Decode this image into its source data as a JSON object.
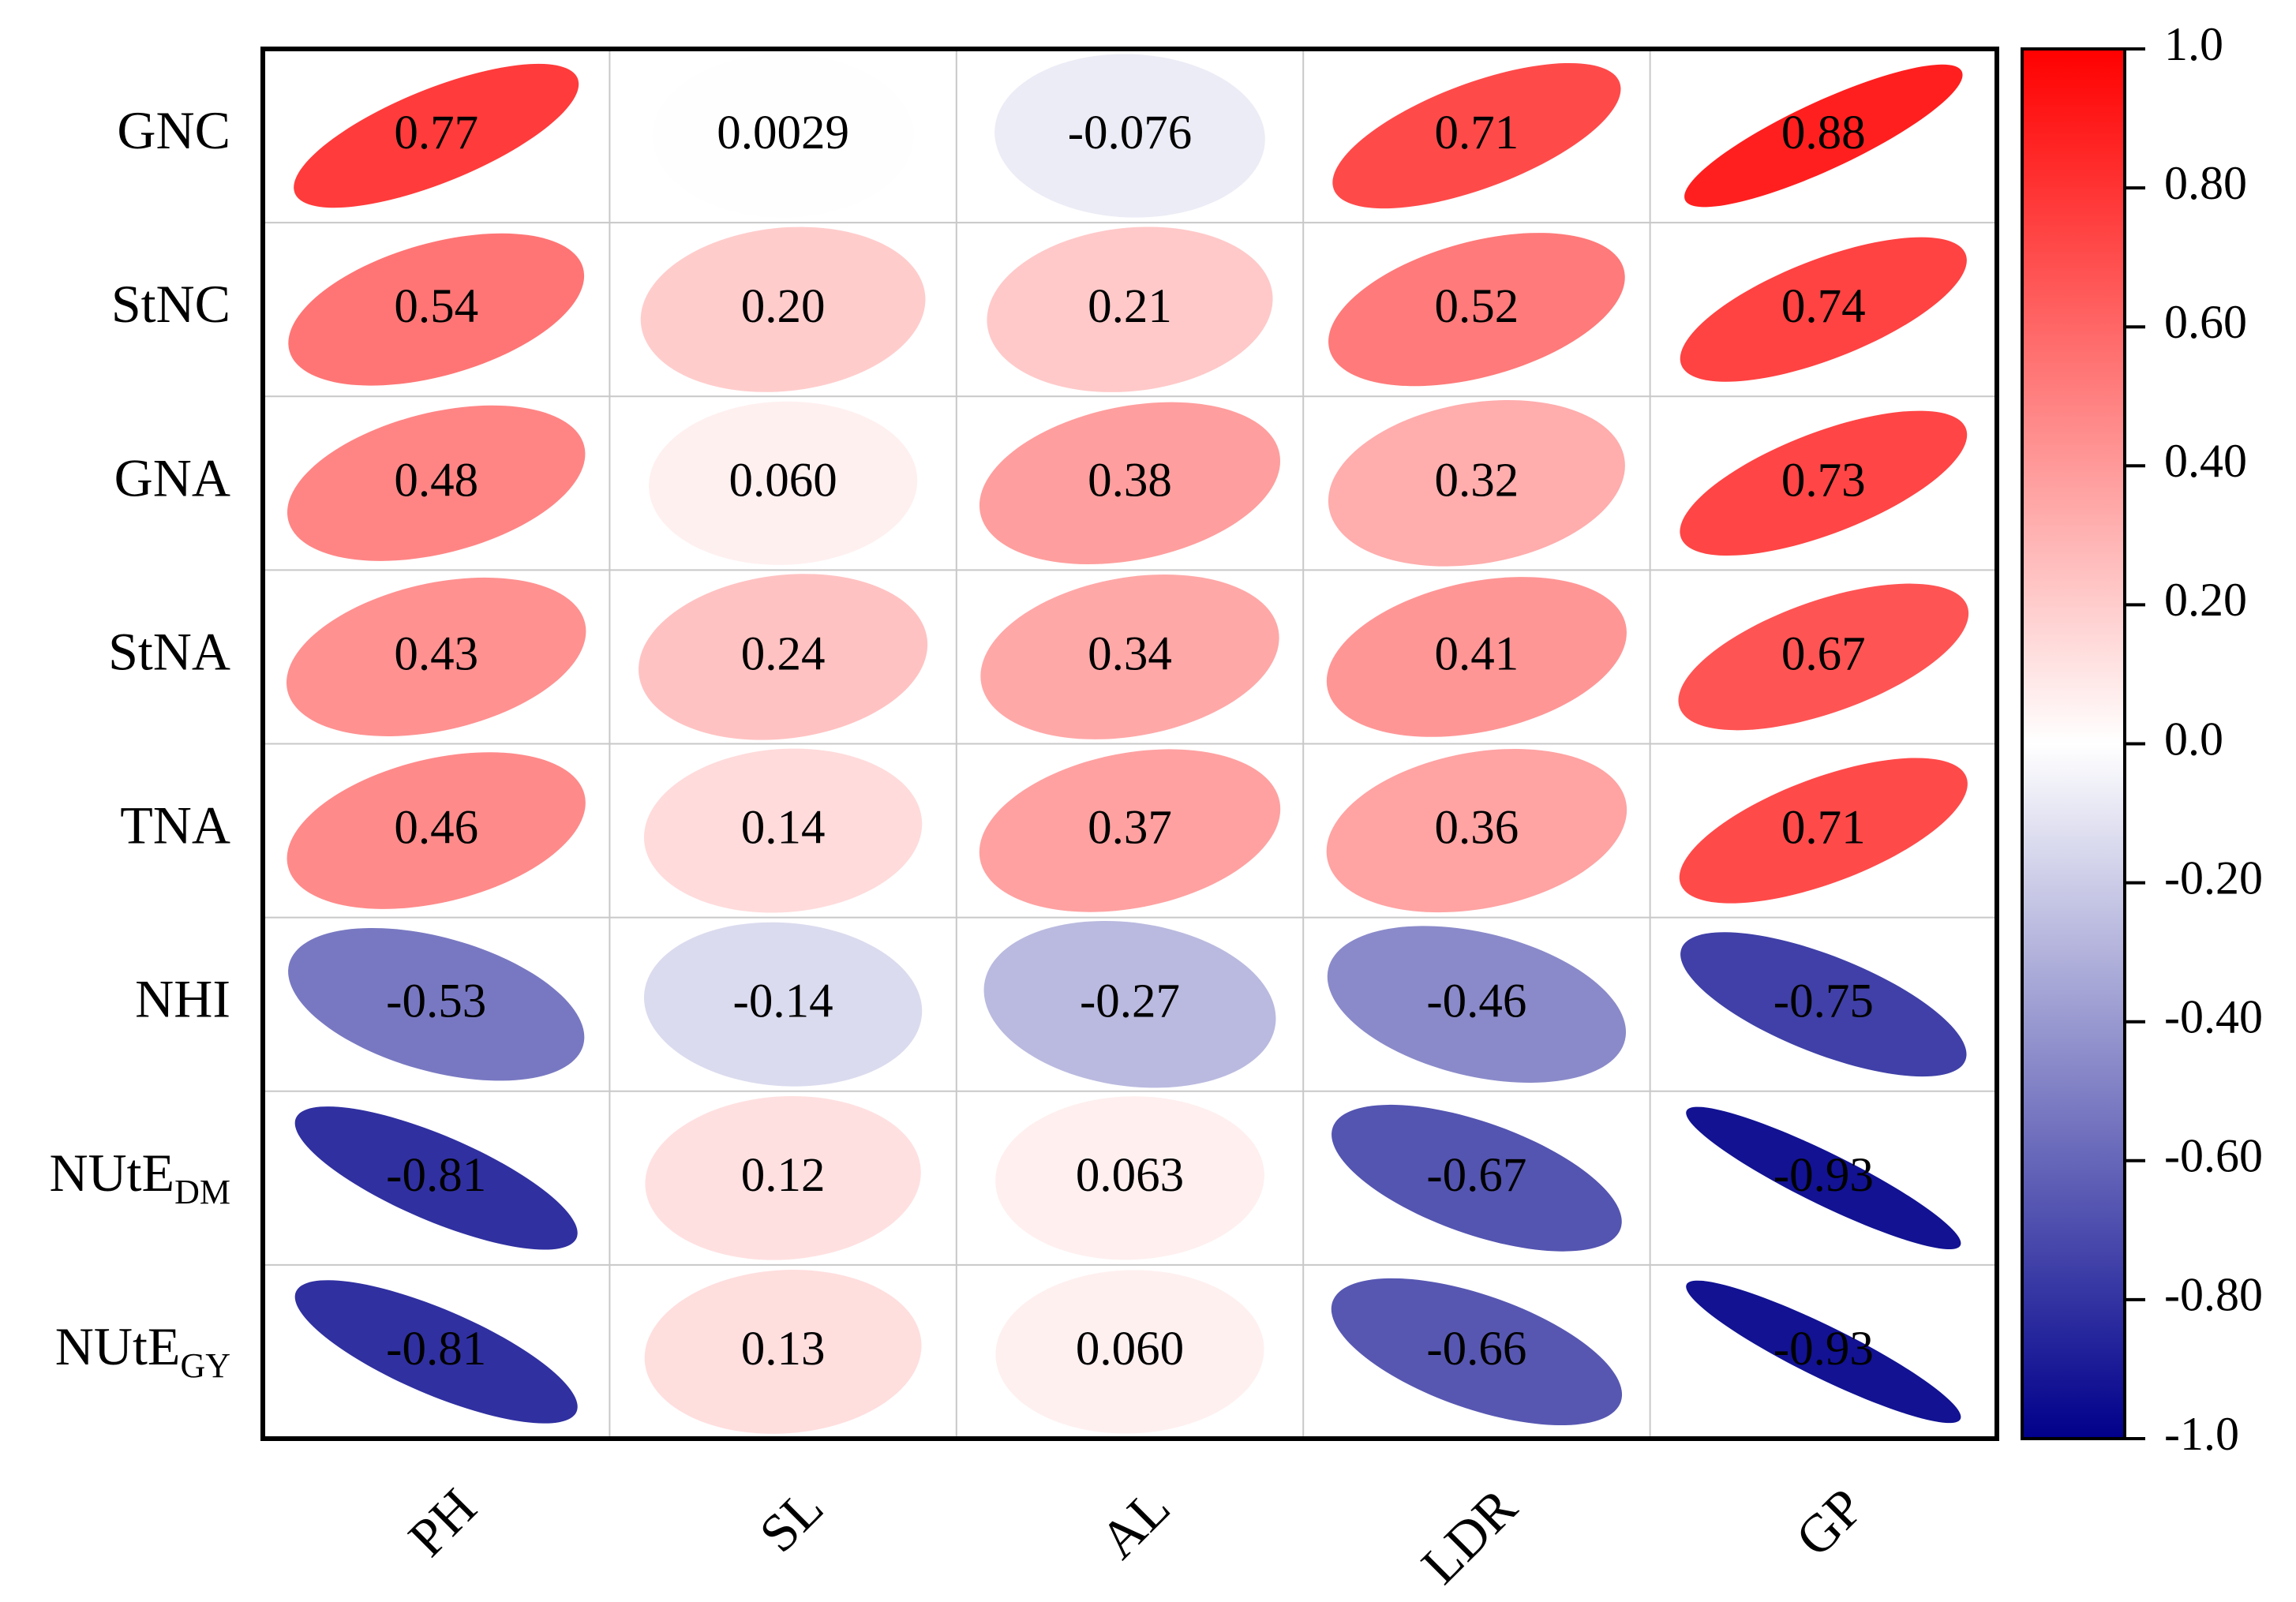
{
  "chart_data": {
    "type": "heatmap",
    "title": "",
    "xlabel": "",
    "ylabel": "",
    "rows": [
      {
        "label": "GNC"
      },
      {
        "label": "StNC"
      },
      {
        "label": "GNA"
      },
      {
        "label": "StNA"
      },
      {
        "label": "TNA"
      },
      {
        "label": "NHI"
      },
      {
        "label": "NUtE",
        "sub": "DM"
      },
      {
        "label": "NUtE",
        "sub": "GY"
      }
    ],
    "columns": [
      "PH",
      "SL",
      "AL",
      "LDR",
      "GP"
    ],
    "values": [
      [
        0.77,
        0.0029,
        -0.076,
        0.71,
        0.88
      ],
      [
        0.54,
        0.2,
        0.21,
        0.52,
        0.74
      ],
      [
        0.48,
        0.06,
        0.38,
        0.32,
        0.73
      ],
      [
        0.43,
        0.24,
        0.34,
        0.41,
        0.67
      ],
      [
        0.46,
        0.14,
        0.37,
        0.36,
        0.71
      ],
      [
        -0.53,
        -0.14,
        -0.27,
        -0.46,
        -0.75
      ],
      [
        -0.81,
        0.12,
        0.063,
        -0.67,
        -0.93
      ],
      [
        -0.81,
        0.13,
        0.06,
        -0.66,
        -0.93
      ]
    ],
    "value_labels": [
      [
        "0.77",
        "0.0029",
        "-0.076",
        "0.71",
        "0.88"
      ],
      [
        "0.54",
        "0.20",
        "0.21",
        "0.52",
        "0.74"
      ],
      [
        "0.48",
        "0.060",
        "0.38",
        "0.32",
        "0.73"
      ],
      [
        "0.43",
        "0.24",
        "0.34",
        "0.41",
        "0.67"
      ],
      [
        "0.46",
        "0.14",
        "0.37",
        "0.36",
        "0.71"
      ],
      [
        "-0.53",
        "-0.14",
        "-0.27",
        "-0.46",
        "-0.75"
      ],
      [
        "-0.81",
        "0.12",
        "0.063",
        "-0.67",
        "-0.93"
      ],
      [
        "-0.81",
        "0.13",
        "0.060",
        "-0.66",
        "-0.93"
      ]
    ],
    "colorbar": {
      "range": [
        -1.0,
        1.0
      ],
      "ticks": [
        "1.0",
        "0.80",
        "0.60",
        "0.40",
        "0.20",
        "0.0",
        "-0.20",
        "-0.40",
        "-0.60",
        "-0.80",
        "-1.0"
      ],
      "tick_values": [
        1.0,
        0.8,
        0.6,
        0.4,
        0.2,
        0.0,
        -0.2,
        -0.4,
        -0.6,
        -0.8,
        -1.0
      ],
      "colors": {
        "high": "#ff0000",
        "mid": "#ffffff",
        "low": "#00008b"
      }
    },
    "colors": {
      "grid": "#c8c8c8",
      "frame": "#000000",
      "text": "#000000"
    }
  }
}
